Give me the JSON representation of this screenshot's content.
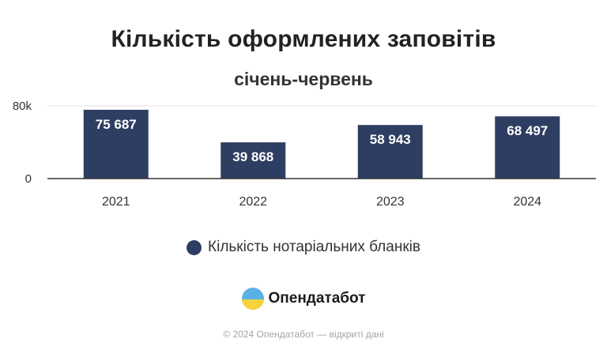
{
  "header": {
    "title": "Кількість оформлених заповітів",
    "subtitle": "січень-червень"
  },
  "legend": {
    "label": "Кількість нотаріальних бланків",
    "color": "#2e3e62"
  },
  "brand": {
    "name": "Опендатабот",
    "logo_icon": "opendatabot-logo-icon"
  },
  "footer": {
    "text": "© 2024 Опендатабот — відкриті дані"
  },
  "chart_data": {
    "type": "bar",
    "categories": [
      "2021",
      "2022",
      "2023",
      "2024"
    ],
    "series": [
      {
        "name": "Кількість нотаріальних бланків",
        "values": [
          75687,
          39868,
          58943,
          68497
        ]
      }
    ],
    "data_labels": [
      "75 687",
      "39 868",
      "58 943",
      "68 497"
    ],
    "yticks": [
      {
        "value": 0,
        "label": "0"
      },
      {
        "value": 80000,
        "label": "80k"
      }
    ],
    "ylim": [
      0,
      80000
    ],
    "grid": true,
    "legend_position": "bottom",
    "bar_color": "#2e3e62"
  }
}
